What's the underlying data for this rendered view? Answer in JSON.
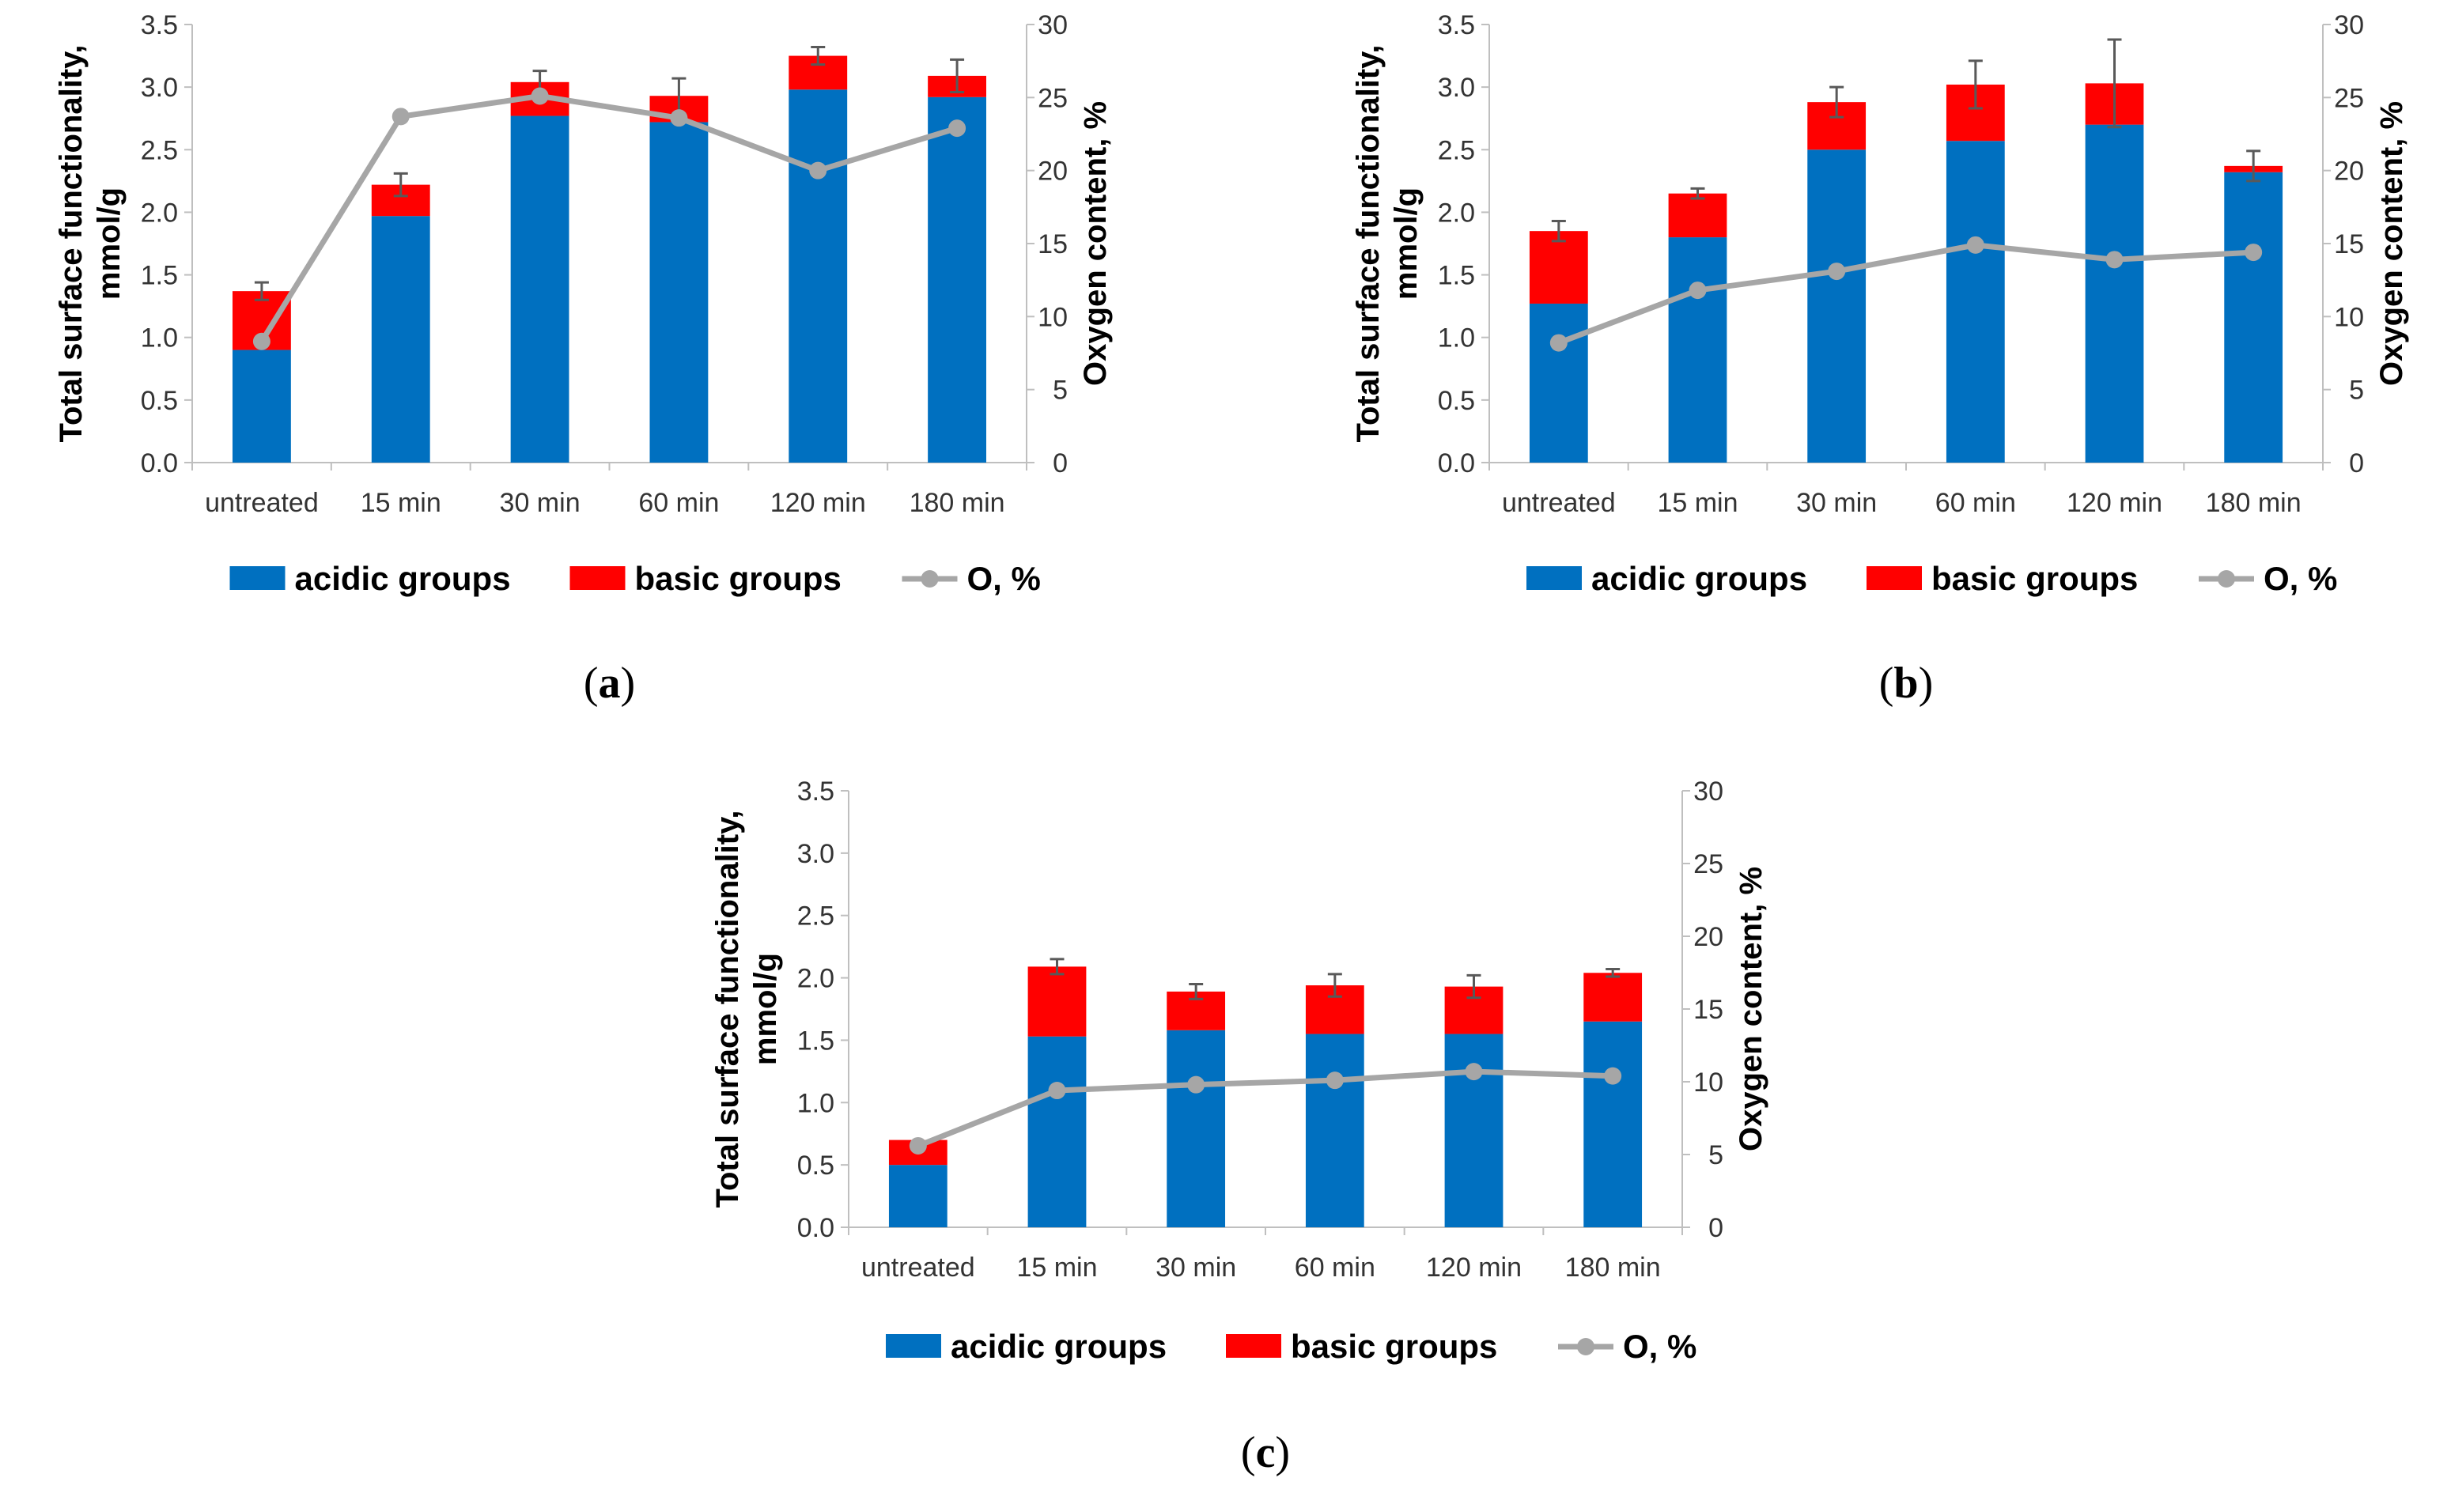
{
  "colors": {
    "acidic": "#0070C0",
    "basic": "#FF0000",
    "oxygen": "#A6A6A6",
    "error_bar": "#595959",
    "axis": "#BFBFBF"
  },
  "legend": {
    "acidic": "acidic groups",
    "basic": "basic groups",
    "oxygen": "O, %"
  },
  "chart_data": [
    {
      "type": "bar",
      "panel_label": "a",
      "stacked": true,
      "categories": [
        "untreated",
        "15 min",
        "30 min",
        "60 min",
        "120 min",
        "180 min"
      ],
      "series": [
        {
          "name": "acidic groups",
          "axis": "left",
          "values": [
            0.9,
            1.97,
            2.77,
            2.72,
            2.98,
            2.92
          ]
        },
        {
          "name": "basic groups",
          "axis": "left",
          "values": [
            0.47,
            0.25,
            0.27,
            0.21,
            0.27,
            0.17
          ]
        },
        {
          "name": "O, %",
          "type": "line",
          "axis": "right",
          "values": [
            8.3,
            23.7,
            25.1,
            23.6,
            20.0,
            22.9
          ]
        }
      ],
      "error_bars": [
        0.07,
        0.09,
        0.09,
        0.14,
        0.07,
        0.13
      ],
      "ylabel_left": [
        "Total surface functionality,",
        "mmol/g"
      ],
      "ylabel_right": "Oxygen content, %",
      "ylim_left": [
        0,
        3.5
      ],
      "ylim_right": [
        0,
        30
      ],
      "yticks_left": [
        "0.0",
        "0.5",
        "1.0",
        "1.5",
        "2.0",
        "2.5",
        "3.0",
        "3.5"
      ],
      "yticks_right": [
        "0",
        "5",
        "10",
        "15",
        "20",
        "25",
        "30"
      ]
    },
    {
      "type": "bar",
      "panel_label": "b",
      "stacked": true,
      "categories": [
        "untreated",
        "15 min",
        "30 min",
        "60 min",
        "120 min",
        "180 min"
      ],
      "series": [
        {
          "name": "acidic groups",
          "axis": "left",
          "values": [
            1.27,
            1.8,
            2.5,
            2.57,
            2.7,
            2.32
          ]
        },
        {
          "name": "basic groups",
          "axis": "left",
          "values": [
            0.58,
            0.35,
            0.38,
            0.45,
            0.33,
            0.05
          ]
        },
        {
          "name": "O, %",
          "type": "line",
          "axis": "right",
          "values": [
            8.2,
            11.8,
            13.1,
            14.9,
            13.9,
            14.4
          ]
        }
      ],
      "error_bars": [
        0.08,
        0.04,
        0.12,
        0.19,
        0.35,
        0.12
      ],
      "ylabel_left": [
        "Total surface functionality,",
        "mmol/g"
      ],
      "ylabel_right": "Oxygen content, %",
      "ylim_left": [
        0,
        3.5
      ],
      "ylim_right": [
        0,
        30
      ],
      "yticks_left": [
        "0.0",
        "0.5",
        "1.0",
        "1.5",
        "2.0",
        "2.5",
        "3.0",
        "3.5"
      ],
      "yticks_right": [
        "0",
        "5",
        "10",
        "15",
        "20",
        "25",
        "30"
      ]
    },
    {
      "type": "bar",
      "panel_label": "c",
      "stacked": true,
      "categories": [
        "untreated",
        "15 min",
        "30 min",
        "60 min",
        "120 min",
        "180 min"
      ],
      "series": [
        {
          "name": "acidic groups",
          "axis": "left",
          "values": [
            0.5,
            1.53,
            1.58,
            1.55,
            1.55,
            1.65
          ]
        },
        {
          "name": "basic groups",
          "axis": "left",
          "values": [
            0.2,
            0.56,
            0.31,
            0.39,
            0.38,
            0.39
          ]
        },
        {
          "name": "O, %",
          "type": "line",
          "axis": "right",
          "values": [
            5.6,
            9.4,
            9.8,
            10.1,
            10.7,
            10.4
          ]
        }
      ],
      "error_bars": [
        0.0,
        0.06,
        0.06,
        0.09,
        0.09,
        0.03
      ],
      "ylabel_left": [
        "Total surface functionality,",
        "mmol/g"
      ],
      "ylabel_right": "Oxygen content, %",
      "ylim_left": [
        0,
        3.5
      ],
      "ylim_right": [
        0,
        30
      ],
      "yticks_left": [
        "0.0",
        "0.5",
        "1.0",
        "1.5",
        "2.0",
        "2.5",
        "3.0",
        "3.5"
      ],
      "yticks_right": [
        "0",
        "5",
        "10",
        "15",
        "20",
        "25",
        "30"
      ]
    }
  ]
}
